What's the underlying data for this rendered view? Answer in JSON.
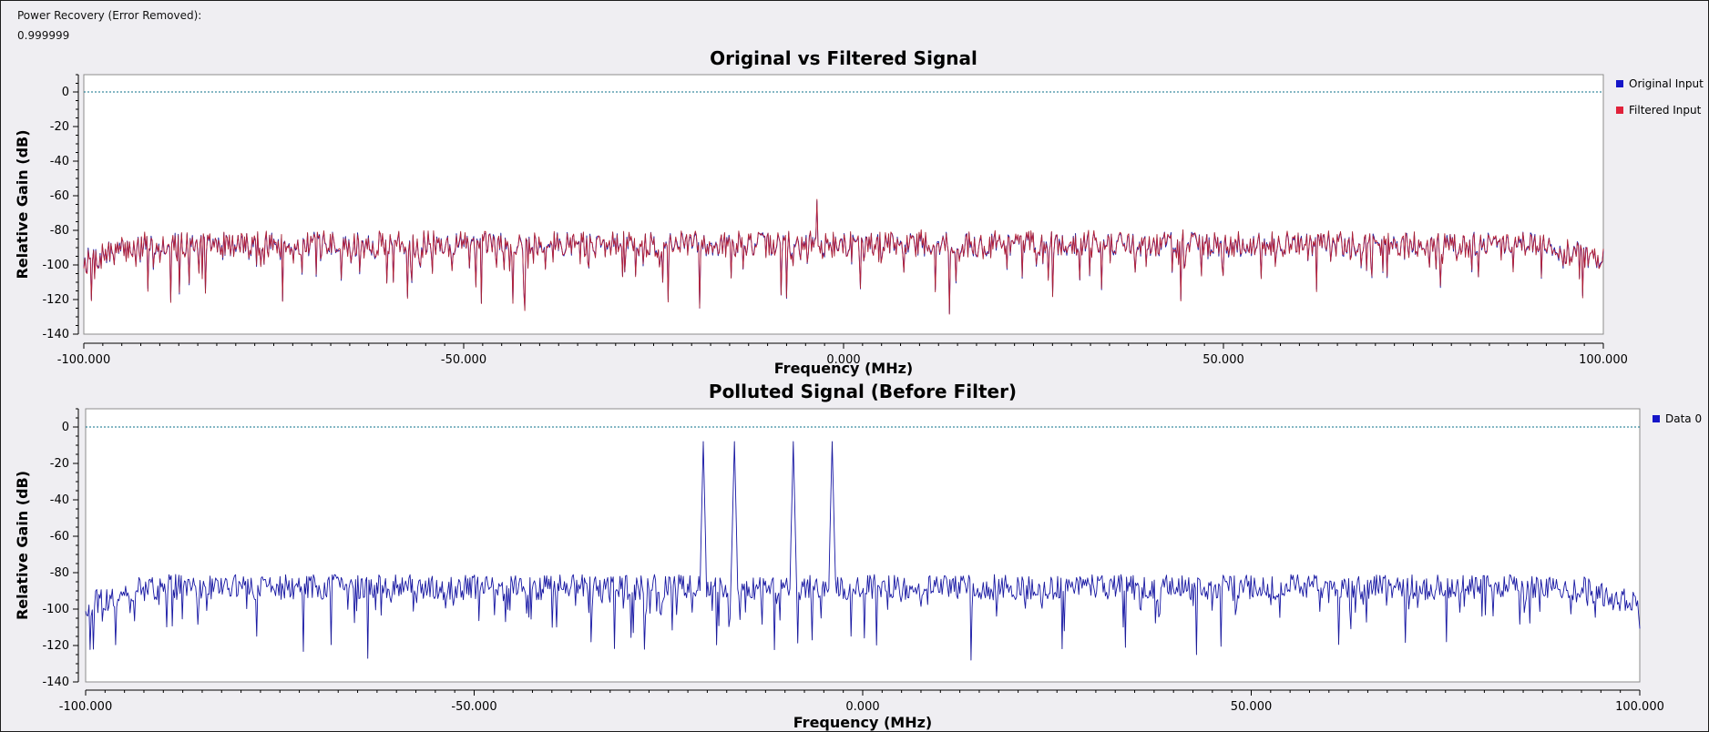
{
  "readout": {
    "label": "Power Recovery (Error Removed):",
    "value": "0.999999"
  },
  "colors": {
    "original": "#1515c8",
    "filtered": "#e0213a",
    "data0": "#1515c8",
    "reference_line": "#0b6f8a"
  },
  "chart_data": [
    {
      "type": "line",
      "title": "Original vs Filtered Signal",
      "xlabel": "Frequency (MHz)",
      "ylabel": "Relative Gain (dB)",
      "xlim": [
        -100,
        100
      ],
      "ylim": [
        -140,
        10
      ],
      "x_ticks": [
        "-100.000",
        "-50.000",
        "0.000",
        "50.000",
        "100.000"
      ],
      "y_ticks": [
        "0",
        "-20",
        "-40",
        "-60",
        "-80",
        "-100",
        "-120",
        "-140"
      ],
      "legend_position": "right",
      "reference_level_db": 0,
      "noise_floor_db": -88,
      "series": [
        {
          "name": "Original Input",
          "color": "#1515c8",
          "peaks": [
            {
              "x": -3.5,
              "y": -63
            }
          ]
        },
        {
          "name": "Filtered Input",
          "color": "#e0213a",
          "peaks": [
            {
              "x": -3.5,
              "y": -63
            }
          ]
        }
      ],
      "notable_minima": [
        {
          "x": -99,
          "y": -120
        },
        {
          "x": -19,
          "y": -125
        },
        {
          "x": 14,
          "y": -128
        }
      ]
    },
    {
      "type": "line",
      "title": "Polluted Signal (Before Filter)",
      "xlabel": "Frequency (MHz)",
      "ylabel": "Relative Gain (dB)",
      "xlim": [
        -100,
        100
      ],
      "ylim": [
        -140,
        10
      ],
      "x_ticks": [
        "-100.000",
        "-50.000",
        "0.000",
        "50.000",
        "100.000"
      ],
      "y_ticks": [
        "0",
        "-20",
        "-40",
        "-60",
        "-80",
        "-100",
        "-120",
        "-140"
      ],
      "legend_position": "right",
      "reference_level_db": 0,
      "noise_floor_db": -88,
      "series": [
        {
          "name": "Data 0",
          "color": "#1515c8",
          "peaks": [
            {
              "x": -20.5,
              "y": -8
            },
            {
              "x": -16.5,
              "y": -8
            },
            {
              "x": -9,
              "y": -8
            },
            {
              "x": -4,
              "y": -8
            }
          ]
        }
      ],
      "notable_minima": [
        {
          "x": -99,
          "y": -122
        },
        {
          "x": -35,
          "y": -118
        },
        {
          "x": 14,
          "y": -128
        }
      ]
    }
  ]
}
